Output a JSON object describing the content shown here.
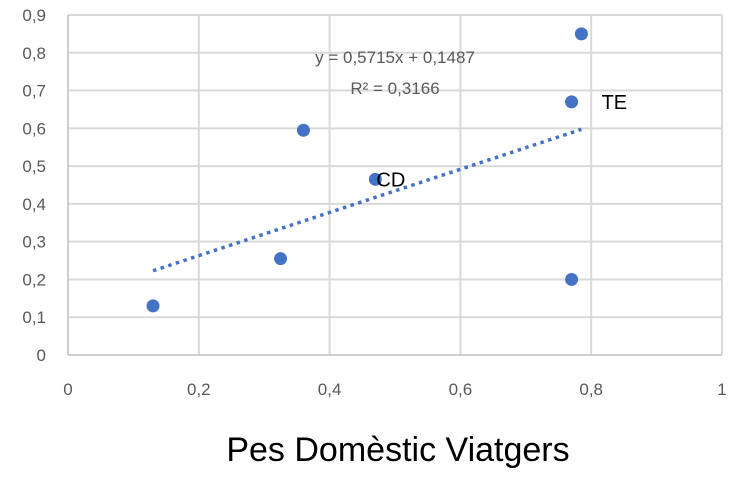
{
  "chart_data": {
    "type": "scatter",
    "title": "",
    "xlabel": "Pes Domèstic Viatgers",
    "ylabel": "",
    "xlim": [
      0,
      1
    ],
    "ylim": [
      0,
      0.9
    ],
    "x_ticks": [
      "0",
      "0,2",
      "0,4",
      "0,6",
      "0,8",
      "1"
    ],
    "y_ticks": [
      "0",
      "0,1",
      "0,2",
      "0,3",
      "0,4",
      "0,5",
      "0,6",
      "0,7",
      "0,8",
      "0,9"
    ],
    "grid": true,
    "legend": "none",
    "series": [
      {
        "points": [
          {
            "x": 0.13,
            "y": 0.13,
            "label": ""
          },
          {
            "x": 0.325,
            "y": 0.255,
            "label": ""
          },
          {
            "x": 0.36,
            "y": 0.595,
            "label": ""
          },
          {
            "x": 0.47,
            "y": 0.465,
            "label": "CD"
          },
          {
            "x": 0.77,
            "y": 0.67,
            "label": "TE"
          },
          {
            "x": 0.77,
            "y": 0.2,
            "label": ""
          },
          {
            "x": 0.785,
            "y": 0.85,
            "label": ""
          }
        ]
      }
    ],
    "trendline": {
      "type": "linear",
      "style": "dotted",
      "slope": 0.5715,
      "intercept": 0.1487,
      "x_range": [
        0.13,
        0.785
      ],
      "equation_text": "y = 0,5715x + 0,1487",
      "r2_text": "R² = 0,3166"
    },
    "colors": {
      "marker": "#4472C4",
      "trendline": "#4472C4",
      "grid": "#D9D9D9",
      "axis": "#BFBFBF",
      "tick_text": "#595959"
    }
  }
}
